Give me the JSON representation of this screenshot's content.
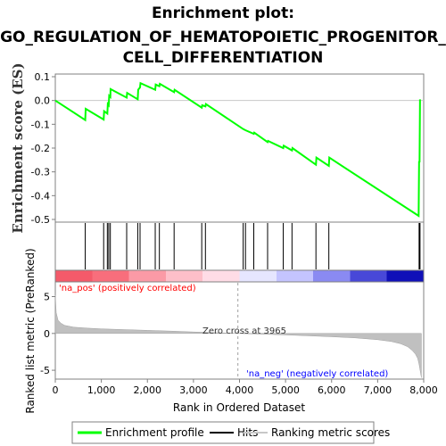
{
  "chart_data": {
    "type": "line",
    "title_lines": [
      "Enrichment plot:",
      "GO_REGULATION_OF_HEMATOPOIETIC_PROGENITOR_",
      "CELL_DIFFERENTIATION"
    ],
    "es_panel": {
      "ylabel": "Enrichment score (ES)",
      "ylim": [
        -0.5,
        0.1
      ],
      "yticks": [
        0.1,
        0.0,
        -0.1,
        -0.2,
        -0.3,
        -0.4,
        -0.5
      ],
      "ytick_labels": [
        "0.1",
        "0.0",
        "-0.1",
        "-0.2",
        "-0.3",
        "-0.4",
        "-0.5"
      ],
      "grid": false,
      "series": [
        {
          "name": "Enrichment profile",
          "color": "#00ff00",
          "x": [
            0,
            650,
            660,
            1050,
            1060,
            1130,
            1140,
            1160,
            1170,
            1195,
            1200,
            1550,
            1560,
            1790,
            1800,
            1840,
            1850,
            2170,
            2180,
            2260,
            2270,
            2580,
            2590,
            3180,
            3190,
            3260,
            3270,
            4080,
            4130,
            4310,
            4320,
            4610,
            4620,
            4950,
            4960,
            5140,
            5150,
            5660,
            5670,
            5940,
            5950,
            7890,
            7900,
            7910,
            7920
          ],
          "y": [
            0.0,
            -0.082,
            -0.035,
            -0.08,
            -0.045,
            -0.055,
            -0.015,
            -0.02,
            0.02,
            0.015,
            0.048,
            0.012,
            0.032,
            0.005,
            0.045,
            0.055,
            0.073,
            0.045,
            0.067,
            0.06,
            0.07,
            0.035,
            0.045,
            -0.03,
            -0.02,
            -0.025,
            -0.015,
            -0.12,
            -0.125,
            -0.14,
            -0.135,
            -0.175,
            -0.17,
            -0.2,
            -0.19,
            -0.21,
            -0.2,
            -0.27,
            -0.24,
            -0.275,
            -0.24,
            -0.485,
            -0.255,
            -0.26,
            0.005
          ]
        }
      ]
    },
    "hits_panel": {
      "series_name": "Hits",
      "positions": [
        650,
        1050,
        1130,
        1160,
        1195,
        1550,
        1790,
        1840,
        2170,
        2260,
        2580,
        3180,
        3260,
        4080,
        4130,
        4310,
        4610,
        4950,
        5140,
        5660,
        5940,
        7900,
        7910,
        7920
      ]
    },
    "color_bar": {
      "stops": [
        "#f45a6a",
        "#f86e7c",
        "#fb9aa6",
        "#fdbfc9",
        "#ffdce6",
        "#e6e6ff",
        "#c4c4ff",
        "#8a8af2",
        "#4848d8",
        "#1010b8"
      ],
      "pos_label": "'na_pos' (positively correlated)",
      "neg_label": "'na_neg' (negatively correlated)",
      "pos_color": "#ff0000",
      "neg_color": "#0000ff"
    },
    "metric_panel": {
      "ylabel": "Ranked list metric (PreRanked)",
      "ylim": [
        -6.2,
        7.0
      ],
      "yticks": [
        5,
        0,
        -5
      ],
      "ytick_labels": [
        "5",
        "0",
        "-5"
      ],
      "series_name": "Ranking metric scores",
      "curve_x": [
        0,
        20,
        60,
        120,
        200,
        400,
        700,
        1000,
        1500,
        2000,
        2500,
        3000,
        3500,
        3965,
        4500,
        5000,
        5500,
        6000,
        6500,
        7000,
        7300,
        7500,
        7650,
        7750,
        7820,
        7870,
        7900,
        7930,
        7950
      ],
      "curve_y": [
        5.2,
        2.8,
        1.8,
        1.4,
        1.1,
        0.85,
        0.72,
        0.62,
        0.52,
        0.42,
        0.32,
        0.2,
        0.1,
        0.0,
        -0.1,
        -0.2,
        -0.32,
        -0.45,
        -0.6,
        -0.85,
        -1.1,
        -1.4,
        -1.8,
        -2.3,
        -2.8,
        -3.4,
        -4.2,
        -5.3,
        -6.0
      ],
      "zero_cross_text": "Zero cross at 3965",
      "zero_cross": 3965
    },
    "xaxis": {
      "xlabel": "Rank in Ordered Dataset",
      "xlim": [
        0,
        8000
      ],
      "xticks": [
        0,
        1000,
        2000,
        3000,
        4000,
        5000,
        6000,
        7000,
        8000
      ],
      "xtick_labels": [
        "0",
        "1,000",
        "2,000",
        "3,000",
        "4,000",
        "5,000",
        "6,000",
        "7,000",
        "8,000"
      ]
    },
    "legend": {
      "items": [
        {
          "label": "Enrichment profile",
          "color": "#00ff00",
          "kind": "line"
        },
        {
          "label": "Hits",
          "color": "#000000",
          "kind": "line"
        },
        {
          "label": "Ranking metric scores",
          "color": "#c8c8c8",
          "kind": "line"
        }
      ]
    }
  }
}
